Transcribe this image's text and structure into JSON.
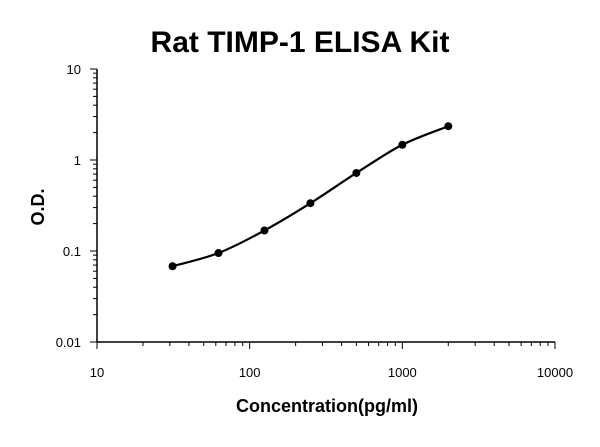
{
  "chart_data": {
    "type": "scatter",
    "title": "Rat TIMP-1 ELISA Kit",
    "xlabel": "Concentration(pg/ml)",
    "ylabel": "O.D.",
    "x_scale": "log",
    "y_scale": "log",
    "xlim": [
      10,
      10000
    ],
    "ylim": [
      0.01,
      10
    ],
    "x_ticks": [
      "10",
      "100",
      "1000",
      "10000"
    ],
    "y_ticks": [
      "0.01",
      "0.1",
      "1",
      "10"
    ],
    "grid": false,
    "fit_curve": true,
    "series": [
      {
        "x": [
          31.25,
          62.5,
          125,
          250,
          500,
          1000,
          2000
        ],
        "y": [
          0.068,
          0.095,
          0.168,
          0.335,
          0.72,
          1.47,
          2.35
        ]
      }
    ]
  },
  "colors": {
    "marker": "#000000",
    "line": "#000000"
  }
}
